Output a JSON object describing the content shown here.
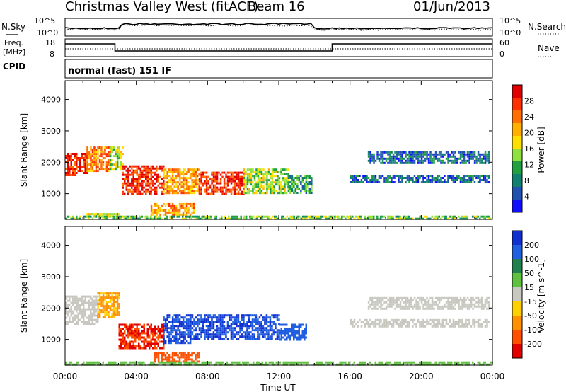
{
  "header": {
    "station": "Christmas Valley West (fitACF)",
    "beam": "Beam 16",
    "date": "01/Jun/2013"
  },
  "noise_panel": {
    "left_label": "N.Sky",
    "right_label": "N.Search",
    "left_ticks": [
      "10^5",
      "10^0"
    ],
    "right_ticks": [
      "10^5",
      "10^0"
    ]
  },
  "freq_panel": {
    "left_label_1": "Freq.",
    "left_label_2": "[MHz]",
    "right_label": "Nave",
    "left_ticks": [
      "18",
      "8"
    ],
    "right_ticks": [
      "60",
      "0"
    ],
    "freq_levels": [
      {
        "from_hour": 0,
        "to_hour": 2.8,
        "level": 16.0
      },
      {
        "from_hour": 2.8,
        "to_hour": 15.0,
        "level": 11.0
      },
      {
        "from_hour": 15.0,
        "to_hour": 24.0,
        "level": 16.0
      }
    ]
  },
  "cpid": {
    "label": "CPID",
    "value": "normal (fast) 151 IF"
  },
  "time_axis": {
    "label": "Time UT",
    "ticks": [
      "00:00",
      "04:00",
      "08:00",
      "12:00",
      "16:00",
      "20:00",
      "00:00"
    ]
  },
  "chart_data": [
    {
      "type": "heatmap",
      "panel": "power",
      "xlabel": "Time UT",
      "ylabel": "Slant Range [km]",
      "yticks": [
        1000,
        2000,
        3000,
        4000
      ],
      "ylim": [
        180,
        4600
      ],
      "xlim_hours": [
        0,
        24
      ],
      "colorbar_label": "Power [dB]",
      "colorbar_ticks": [
        "28",
        "24",
        "20",
        "16",
        "12",
        "8",
        "4"
      ],
      "colorbar_colors": [
        "#e00000",
        "#ff3000",
        "#ff7000",
        "#ffb000",
        "#ffe000",
        "#90e040",
        "#20a040",
        "#108070",
        "#2050b0",
        "#1010ff"
      ],
      "regions": [
        {
          "t0": 0.0,
          "t1": 1.2,
          "r0": 1600,
          "r1": 2300,
          "value": 26
        },
        {
          "t0": 1.2,
          "t1": 2.5,
          "r0": 1700,
          "r1": 2500,
          "value": 22
        },
        {
          "t0": 2.5,
          "t1": 3.2,
          "r0": 1800,
          "r1": 2500,
          "value": 14
        },
        {
          "t0": 3.2,
          "t1": 5.5,
          "r0": 1000,
          "r1": 1900,
          "value": 26
        },
        {
          "t0": 5.5,
          "t1": 7.5,
          "r0": 1000,
          "r1": 1800,
          "value": 20
        },
        {
          "t0": 7.5,
          "t1": 10.0,
          "r0": 1000,
          "r1": 1700,
          "value": 26
        },
        {
          "t0": 10.0,
          "t1": 12.5,
          "r0": 1000,
          "r1": 1800,
          "value": 14
        },
        {
          "t0": 12.5,
          "t1": 13.8,
          "r0": 1000,
          "r1": 1600,
          "value": 10
        },
        {
          "t0": 4.8,
          "t1": 7.2,
          "r0": 300,
          "r1": 700,
          "value": 20
        },
        {
          "t0": 1.2,
          "t1": 3.0,
          "r0": 280,
          "r1": 380,
          "value": 16
        },
        {
          "t0": 16.0,
          "t1": 23.8,
          "r0": 1350,
          "r1": 1600,
          "value": 6
        },
        {
          "t0": 17.0,
          "t1": 23.8,
          "r0": 2000,
          "r1": 2350,
          "value": 6
        },
        {
          "t0": 0.0,
          "t1": 24.0,
          "r0": 180,
          "r1": 300,
          "value": 12
        }
      ]
    },
    {
      "type": "heatmap",
      "panel": "velocity",
      "xlabel": "Time UT",
      "ylabel": "Slant Range [km]",
      "yticks": [
        1000,
        2000,
        3000,
        4000
      ],
      "ylim": [
        180,
        4600
      ],
      "xlim_hours": [
        0,
        24
      ],
      "colorbar_label": "Velocity [m s^-1]",
      "colorbar_ticks": [
        "200",
        "100",
        "50",
        "15",
        "-15",
        "-50",
        "-100",
        "-200"
      ],
      "colorbar_colors": [
        "#1030d0",
        "#2060e0",
        "#208050",
        "#60c040",
        "#c8c8c0",
        "#ffd000",
        "#ff9000",
        "#ff5000",
        "#e00000"
      ],
      "regions": [
        {
          "t0": 0.0,
          "t1": 1.8,
          "r0": 1500,
          "r1": 2400,
          "value": 0
        },
        {
          "t0": 1.8,
          "t1": 3.0,
          "r0": 1700,
          "r1": 2500,
          "value": -60
        },
        {
          "t0": 3.0,
          "t1": 5.5,
          "r0": 700,
          "r1": 1500,
          "value": -200
        },
        {
          "t0": 5.5,
          "t1": 7.0,
          "r0": 900,
          "r1": 1800,
          "value": 200
        },
        {
          "t0": 7.0,
          "t1": 12.0,
          "r0": 1000,
          "r1": 1800,
          "value": 200
        },
        {
          "t0": 12.0,
          "t1": 13.5,
          "r0": 1000,
          "r1": 1500,
          "value": 150
        },
        {
          "t0": 5.0,
          "t1": 7.5,
          "r0": 300,
          "r1": 600,
          "value": -150
        },
        {
          "t0": 16.0,
          "t1": 23.8,
          "r0": 1400,
          "r1": 1650,
          "value": 0
        },
        {
          "t0": 17.0,
          "t1": 23.8,
          "r0": 2000,
          "r1": 2350,
          "value": 0
        },
        {
          "t0": 0.0,
          "t1": 24.0,
          "r0": 180,
          "r1": 300,
          "value": 30
        }
      ]
    }
  ]
}
